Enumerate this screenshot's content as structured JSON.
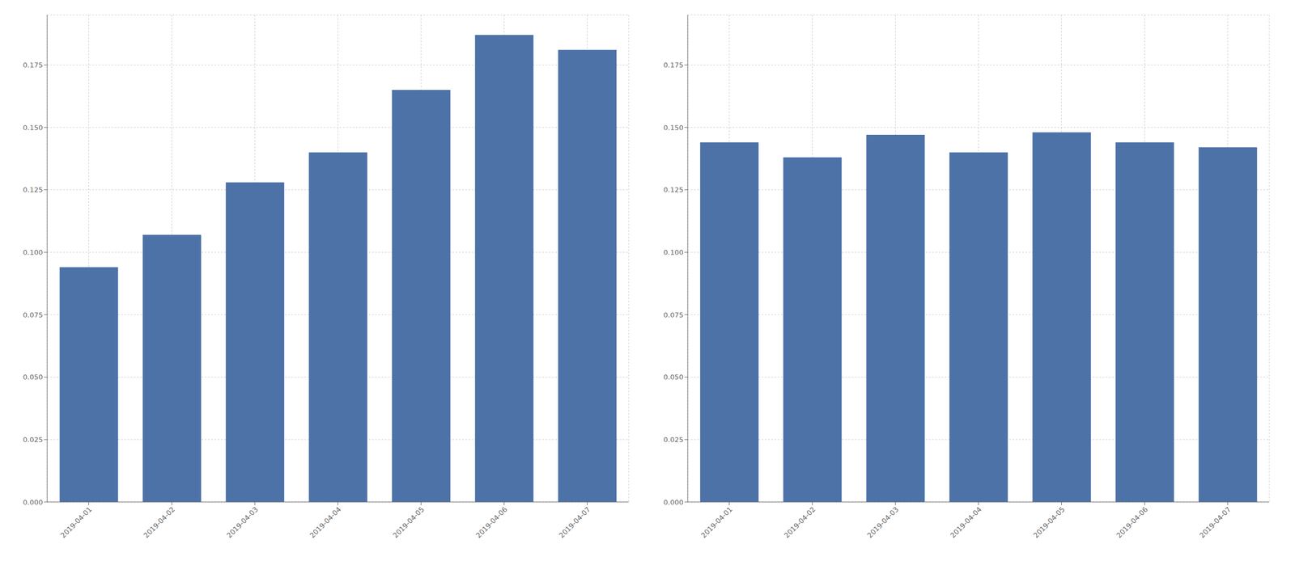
{
  "chart_data": [
    {
      "type": "bar",
      "categories": [
        "2019-04-01",
        "2019-04-02",
        "2019-04-03",
        "2019-04-04",
        "2019-04-05",
        "2019-04-06",
        "2019-04-07"
      ],
      "values": [
        0.094,
        0.107,
        0.128,
        0.14,
        0.165,
        0.187,
        0.181
      ],
      "color": "#4d72a8",
      "ylim": [
        0,
        0.195
      ],
      "yticks": [
        {
          "value": 0,
          "label": "0.000"
        },
        0.025,
        {
          "value": 0.05,
          "label": "0.050"
        },
        0.075,
        {
          "value": 0.1,
          "label": "0.100"
        },
        0.125,
        {
          "value": 0.15,
          "label": "0.150"
        },
        0.175
      ],
      "grid": true
    },
    {
      "type": "bar",
      "categories": [
        "2019-04-01",
        "2019-04-02",
        "2019-04-03",
        "2019-04-04",
        "2019-04-05",
        "2019-04-06",
        "2019-04-07"
      ],
      "values": [
        0.144,
        0.138,
        0.147,
        0.14,
        0.148,
        0.144,
        0.142
      ],
      "color": "#4d72a8",
      "ylim": [
        0,
        0.195
      ],
      "yticks": [
        {
          "value": 0,
          "label": "0.000"
        },
        0.025,
        {
          "value": 0.05,
          "label": "0.050"
        },
        0.075,
        {
          "value": 0.1,
          "label": "0.100"
        },
        0.125,
        {
          "value": 0.15,
          "label": "0.150"
        },
        0.175
      ],
      "grid": true
    }
  ]
}
